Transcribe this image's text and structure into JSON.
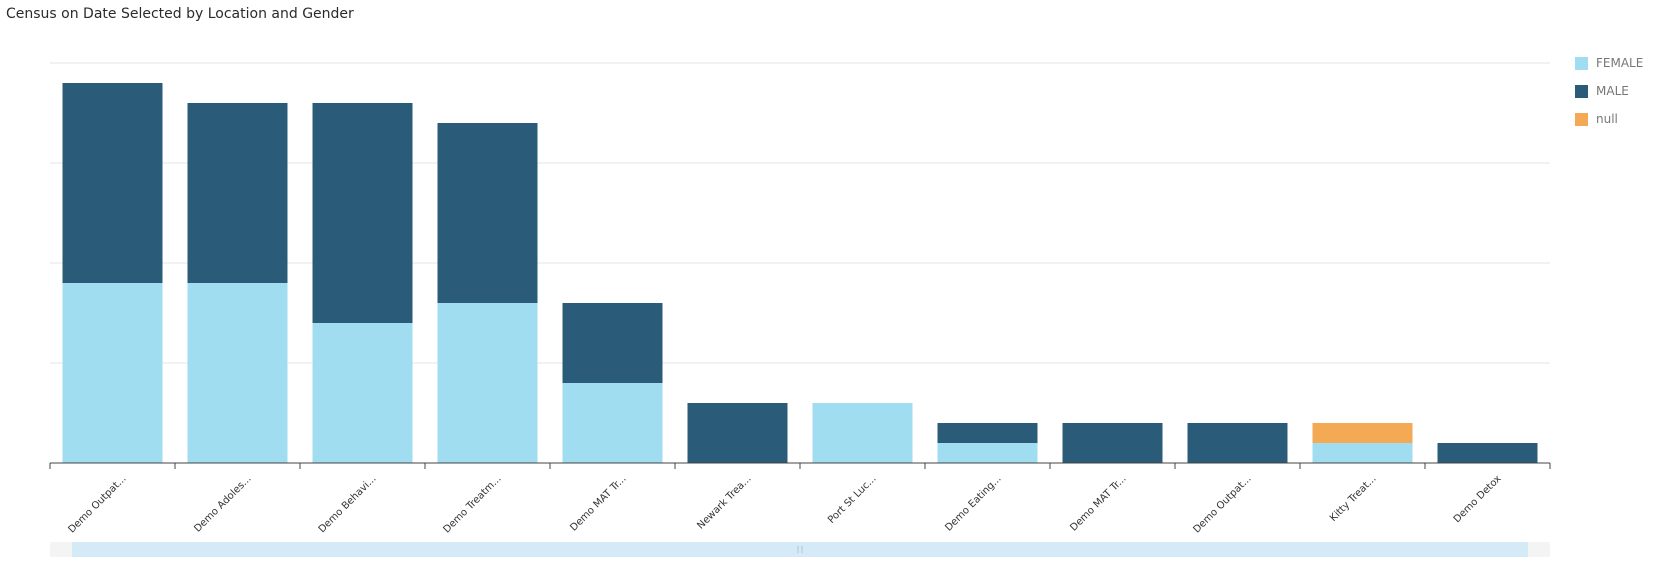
{
  "chart_data": {
    "type": "bar",
    "stacked": true,
    "title": "Census on Date Selected by Location and Gender",
    "xlabel": "",
    "ylabel": "",
    "ylim": [
      0,
      20
    ],
    "grid": true,
    "categories": [
      "Demo Outpat...",
      "Demo Adoles...",
      "Demo Behavi...",
      "Demo Treatm...",
      "Demo MAT Tr...",
      "Newark Trea...",
      "Port St Luc...",
      "Demo Eating...",
      "Demo MAT Tr...",
      "Demo Outpat...",
      "Kitty Treat...",
      "Demo Detox"
    ],
    "series": [
      {
        "name": "FEMALE",
        "color": "#a0ddf0",
        "values": [
          9,
          9,
          7,
          8,
          4,
          0,
          3,
          1,
          0,
          0,
          1,
          0
        ]
      },
      {
        "name": "MALE",
        "color": "#2a5c79",
        "values": [
          10,
          9,
          11,
          9,
          4,
          3,
          0,
          1,
          2,
          2,
          0,
          1
        ]
      },
      {
        "name": "null",
        "color": "#f4aa55",
        "values": [
          0,
          0,
          0,
          0,
          0,
          0,
          0,
          0,
          0,
          0,
          1,
          0
        ]
      }
    ],
    "legend_position": "right"
  }
}
